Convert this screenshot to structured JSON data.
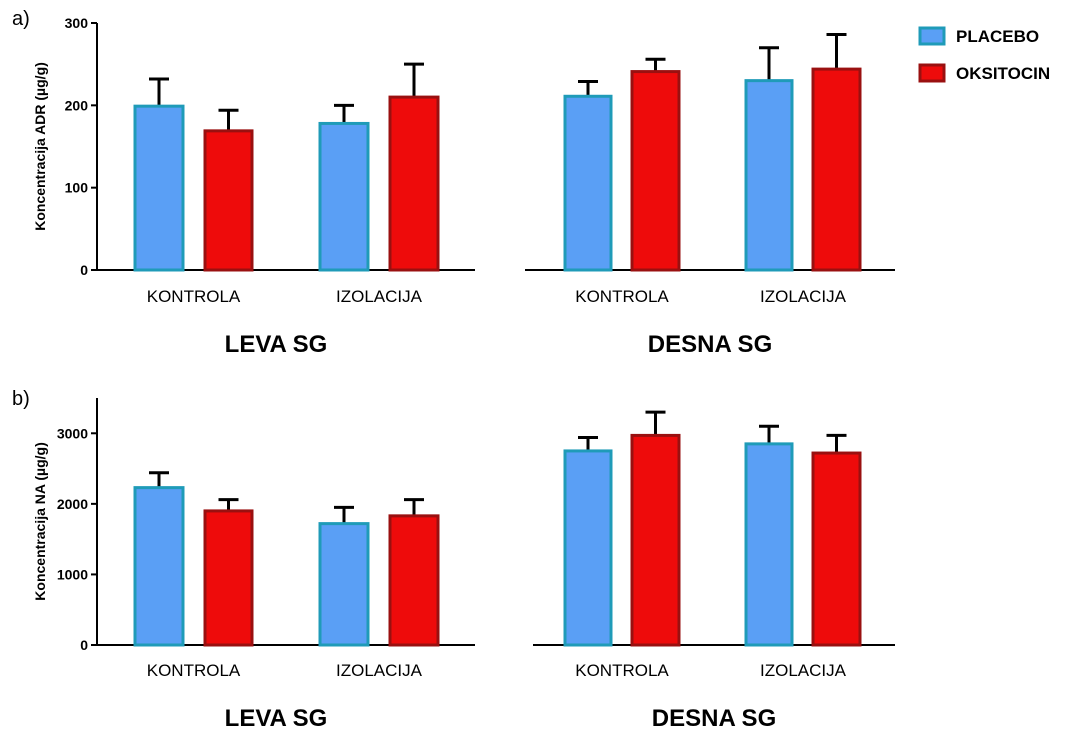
{
  "legend": [
    {
      "label": "PLACEBO",
      "fill": "#5a9ff5",
      "stroke": "#1f9bb8"
    },
    {
      "label": "OKSITOCIN",
      "fill": "#ee0b0b",
      "stroke": "#9a1010"
    }
  ],
  "chart_data": [
    {
      "type": "bar",
      "panel_label": "a)",
      "ylabel": "Koncentracija ADR (µg/g)",
      "ylim": [
        0,
        300
      ],
      "yticks": [
        0,
        100,
        200,
        300
      ],
      "ytick_labels": [
        "0",
        "100",
        "200",
        "300"
      ],
      "subplots": [
        {
          "title": "LEVA SG",
          "categories": [
            "KONTROLA",
            "IZOLACIJA"
          ],
          "series": [
            {
              "name": "PLACEBO",
              "values": [
                199,
                178
              ],
              "errors": [
                33,
                22
              ]
            },
            {
              "name": "OKSITOCIN",
              "values": [
                169,
                210
              ],
              "errors": [
                25,
                40
              ]
            }
          ]
        },
        {
          "title": "DESNA SG",
          "categories": [
            "KONTROLA",
            "IZOLACIJA"
          ],
          "series": [
            {
              "name": "PLACEBO",
              "values": [
                211,
                230
              ],
              "errors": [
                18,
                40
              ]
            },
            {
              "name": "OKSITOCIN",
              "values": [
                241,
                244
              ],
              "errors": [
                15,
                42
              ]
            }
          ]
        }
      ]
    },
    {
      "type": "bar",
      "panel_label": "b)",
      "ylabel": "Koncentracija NA (µg/g)",
      "ylim": [
        0,
        3500
      ],
      "yticks": [
        0,
        1000,
        2000,
        3000
      ],
      "ytick_labels": [
        "0",
        "1000",
        "2000",
        "3000"
      ],
      "subplots": [
        {
          "title": "LEVA SG",
          "categories": [
            "KONTROLA",
            "IZOLACIJA"
          ],
          "series": [
            {
              "name": "PLACEBO",
              "values": [
                2230,
                1720
              ],
              "errors": [
                210,
                230
              ]
            },
            {
              "name": "OKSITOCIN",
              "values": [
                1900,
                1830
              ],
              "errors": [
                160,
                230
              ]
            }
          ]
        },
        {
          "title": "DESNA SG",
          "categories": [
            "KONTROLA",
            "IZOLACIJA"
          ],
          "series": [
            {
              "name": "PLACEBO",
              "values": [
                2750,
                2850
              ],
              "errors": [
                190,
                250
              ]
            },
            {
              "name": "OKSITOCIN",
              "values": [
                2970,
                2720
              ],
              "errors": [
                330,
                250
              ]
            }
          ]
        }
      ]
    }
  ]
}
